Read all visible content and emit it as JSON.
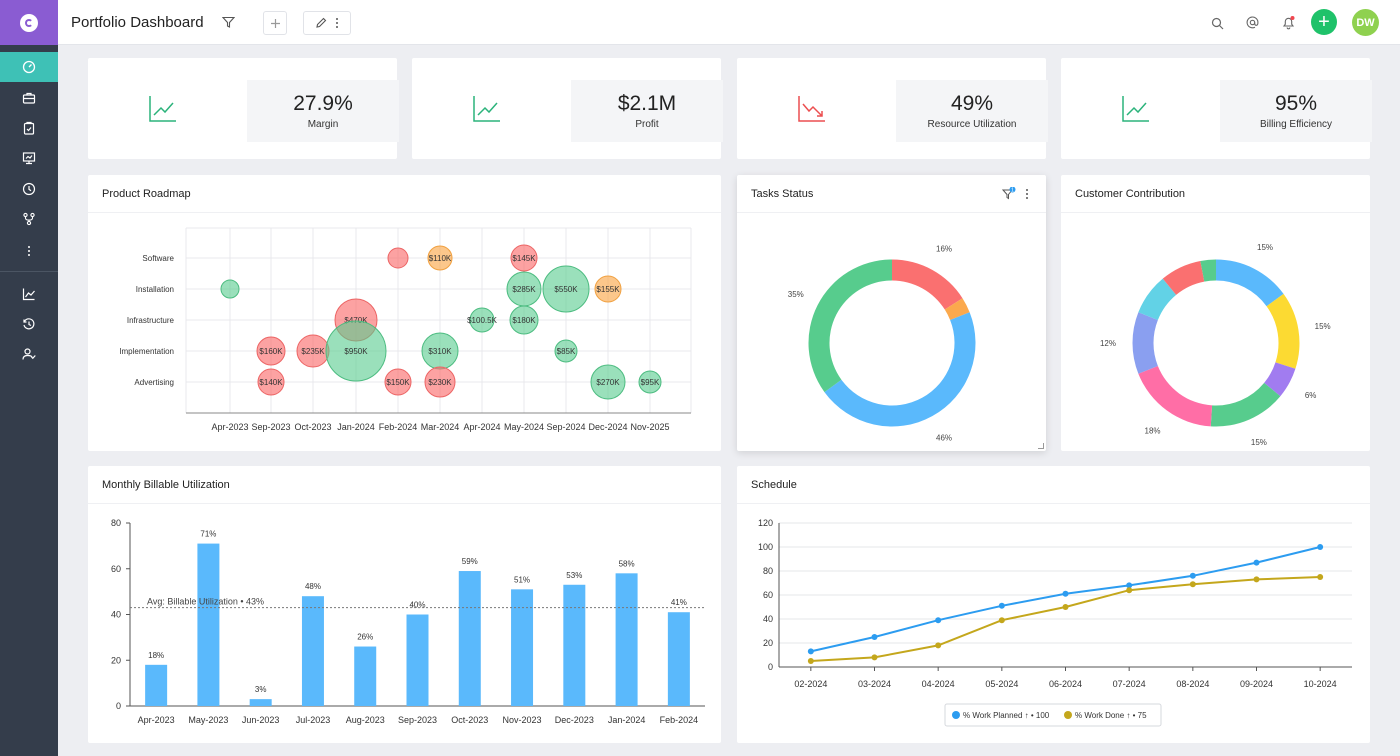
{
  "app": {
    "title": "Portfolio Dashboard",
    "user_initials": "DW"
  },
  "colors": {
    "sidebar": "#343d4b",
    "brand": "#8a5cd2",
    "active": "#3ec1b6",
    "green": "#1fc26a",
    "avatar": "#8fd14f",
    "blue": "#5ab9fc",
    "gold": "#d9b800",
    "up": "#2bb37b",
    "down": "#ec4f50"
  },
  "sidebar": {
    "items": [
      "dashboard-icon",
      "briefcase-icon",
      "clipboard-icon",
      "presentation-icon",
      "clock-icon",
      "workflow-icon",
      "more-icon",
      "chart-icon",
      "history-icon",
      "user-check-icon"
    ]
  },
  "kpis": [
    {
      "value": "27.9%",
      "label": "Margin",
      "trend": "up"
    },
    {
      "value": "$2.1M",
      "label": "Profit",
      "trend": "up"
    },
    {
      "value": "49%",
      "label": "Resource Utilization",
      "trend": "down"
    },
    {
      "value": "95%",
      "label": "Billing Efficiency",
      "trend": "up"
    }
  ],
  "roadmap": {
    "title": "Product Roadmap",
    "categories": [
      "Software",
      "Installation",
      "Infrastructure",
      "Implementation",
      "Advertising"
    ],
    "x_ticks": [
      "Apr-2023",
      "Sep-2023",
      "Oct-2023",
      "Jan-2024",
      "Feb-2024",
      "Mar-2024",
      "Apr-2024",
      "May-2024",
      "Sep-2024",
      "Dec-2024",
      "Nov-2025"
    ],
    "bubbles": [
      {
        "x": 5,
        "y": 0,
        "label": "",
        "status": "red",
        "size": 10
      },
      {
        "x": 6,
        "y": 0,
        "label": "$110K",
        "status": "orange",
        "size": 12
      },
      {
        "x": 8,
        "y": 0,
        "label": "$145K",
        "status": "red",
        "size": 13
      },
      {
        "x": 1,
        "y": 1,
        "label": "",
        "status": "green",
        "size": 9
      },
      {
        "x": 8,
        "y": 1,
        "label": "$285K",
        "status": "green",
        "size": 17
      },
      {
        "x": 9,
        "y": 1,
        "label": "$550K",
        "status": "green",
        "size": 23
      },
      {
        "x": 10,
        "y": 1,
        "label": "$155K",
        "status": "orange",
        "size": 13
      },
      {
        "x": 4,
        "y": 2,
        "label": "$470K",
        "status": "red",
        "size": 21
      },
      {
        "x": 7,
        "y": 2,
        "label": "$100.5K",
        "status": "green",
        "size": 12
      },
      {
        "x": 8,
        "y": 2,
        "label": "$180K",
        "status": "green",
        "size": 14
      },
      {
        "x": 2,
        "y": 3,
        "label": "$160K",
        "status": "red",
        "size": 14
      },
      {
        "x": 3,
        "y": 3,
        "label": "$235K",
        "status": "red",
        "size": 16
      },
      {
        "x": 4,
        "y": 3,
        "label": "$950K",
        "status": "green",
        "size": 30
      },
      {
        "x": 6,
        "y": 3,
        "label": "$310K",
        "status": "green",
        "size": 18
      },
      {
        "x": 9,
        "y": 3,
        "label": "$85K",
        "status": "green",
        "size": 11
      },
      {
        "x": 2,
        "y": 4,
        "label": "$140K",
        "status": "red",
        "size": 13
      },
      {
        "x": 5,
        "y": 4,
        "label": "$150K",
        "status": "red",
        "size": 13
      },
      {
        "x": 6,
        "y": 4,
        "label": "$230K",
        "status": "red",
        "size": 15
      },
      {
        "x": 10,
        "y": 4,
        "label": "$270K",
        "status": "green",
        "size": 17
      },
      {
        "x": 11,
        "y": 4,
        "label": "$95K",
        "status": "green",
        "size": 11
      }
    ]
  },
  "tasks": {
    "title": "Tasks Status",
    "filter_count": "1",
    "segments": [
      {
        "pct": 16,
        "color": "#fa7070",
        "label": "16%"
      },
      {
        "pct": 3,
        "color": "#fba94d",
        "label": ""
      },
      {
        "pct": 46,
        "color": "#5ab9fc",
        "label": "46%"
      },
      {
        "pct": 35,
        "color": "#57cc8d",
        "label": "35%"
      }
    ]
  },
  "customer": {
    "title": "Customer Contribution",
    "segments": [
      {
        "pct": 15,
        "color": "#5ab9fc",
        "label": "15%"
      },
      {
        "pct": 15,
        "color": "#fcda32",
        "label": "15%"
      },
      {
        "pct": 6,
        "color": "#a17cf0",
        "label": "6%"
      },
      {
        "pct": 15,
        "color": "#57cc8d",
        "label": "15%"
      },
      {
        "pct": 18,
        "color": "#ff6ea6",
        "label": "18%"
      },
      {
        "pct": 12,
        "color": "#8a9ff0",
        "label": "12%"
      },
      {
        "pct": 8,
        "color": "#62d2e6",
        "label": ""
      },
      {
        "pct": 8,
        "color": "#fa7070",
        "label": ""
      },
      {
        "pct": 3,
        "color": "#57cc8d",
        "label": ""
      }
    ]
  },
  "chart_data": [
    {
      "type": "bar",
      "title": "Monthly Billable Utilization",
      "categories": [
        "Apr-2023",
        "May-2023",
        "Jun-2023",
        "Jul-2023",
        "Aug-2023",
        "Sep-2023",
        "Oct-2023",
        "Nov-2023",
        "Dec-2023",
        "Jan-2024",
        "Feb-2024"
      ],
      "values": [
        18,
        71,
        3,
        48,
        26,
        40,
        59,
        51,
        53,
        58,
        41
      ],
      "value_labels": [
        "18%",
        "71%",
        "3%",
        "48%",
        "26%",
        "40%",
        "59%",
        "51%",
        "53%",
        "58%",
        "41%"
      ],
      "ylim": [
        0,
        80
      ],
      "yticks": [
        "0",
        "20",
        "40",
        "60",
        "80"
      ],
      "avg_line": {
        "value": 43,
        "label": "Avg: Billable Utilization • 43%"
      }
    },
    {
      "type": "line",
      "title": "Schedule",
      "x": [
        "02-2024",
        "03-2024",
        "04-2024",
        "05-2024",
        "06-2024",
        "07-2024",
        "08-2024",
        "09-2024",
        "10-2024"
      ],
      "ylim": [
        0,
        120
      ],
      "yticks": [
        "0",
        "20",
        "40",
        "60",
        "80",
        "100",
        "120"
      ],
      "series": [
        {
          "name": "% Work Planned ↑ • 100",
          "color": "#2c9cf0",
          "values": [
            13,
            25,
            39,
            51,
            61,
            68,
            76,
            87,
            100
          ]
        },
        {
          "name": "% Work Done ↑ • 75",
          "color": "#c4a71c",
          "values": [
            5,
            8,
            18,
            39,
            50,
            64,
            69,
            73,
            75
          ]
        }
      ]
    }
  ]
}
